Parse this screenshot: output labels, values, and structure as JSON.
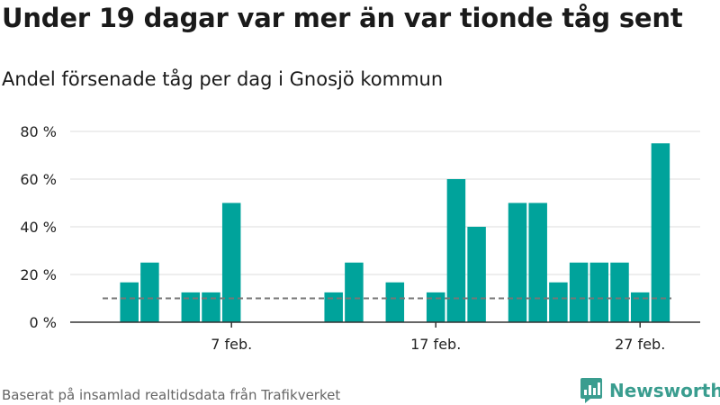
{
  "title": "Under 19 dagar var mer än var tionde tåg sent",
  "subtitle": "Andel försenade tåg per dag i Gnosjö kommun",
  "footer": "Baserat på insamlad realtidsdata från Trafikverket",
  "brand": {
    "name": "Newsworthy",
    "icon": "newsworthy-logo-icon",
    "color": "#3a9d8f"
  },
  "colors": {
    "bar": "#00a39b",
    "reference": "#777777",
    "grid": "#dddddd",
    "axis": "#333333"
  },
  "chart_data": {
    "type": "bar",
    "categories": [
      "1 feb.",
      "2 feb.",
      "3 feb.",
      "4 feb.",
      "5 feb.",
      "6 feb.",
      "7 feb.",
      "8 feb.",
      "9 feb.",
      "10 feb.",
      "11 feb.",
      "12 feb.",
      "13 feb.",
      "14 feb.",
      "15 feb.",
      "16 feb.",
      "17 feb.",
      "18 feb.",
      "19 feb.",
      "20 feb.",
      "21 feb.",
      "22 feb.",
      "23 feb.",
      "24 feb.",
      "25 feb.",
      "26 feb.",
      "27 feb.",
      "28 feb."
    ],
    "values": [
      0,
      16.7,
      25,
      0,
      12.5,
      12.5,
      50,
      0,
      0,
      0,
      0,
      12.5,
      25,
      0,
      16.7,
      0,
      12.5,
      60,
      40,
      0,
      50,
      50,
      16.7,
      25,
      25,
      25,
      12.5,
      75
    ],
    "xticks": [
      {
        "label": "7 feb.",
        "index": 6
      },
      {
        "label": "17 feb.",
        "index": 16
      },
      {
        "label": "27 feb.",
        "index": 26
      }
    ],
    "yticks": [
      {
        "value": 0,
        "label": "0 %"
      },
      {
        "value": 20,
        "label": "20 %"
      },
      {
        "value": 40,
        "label": "40 %"
      },
      {
        "value": 60,
        "label": "60 %"
      },
      {
        "value": 80,
        "label": "80 %"
      }
    ],
    "ylim": [
      0,
      80
    ],
    "reference_line": 10,
    "grid": true,
    "legend": "none"
  }
}
